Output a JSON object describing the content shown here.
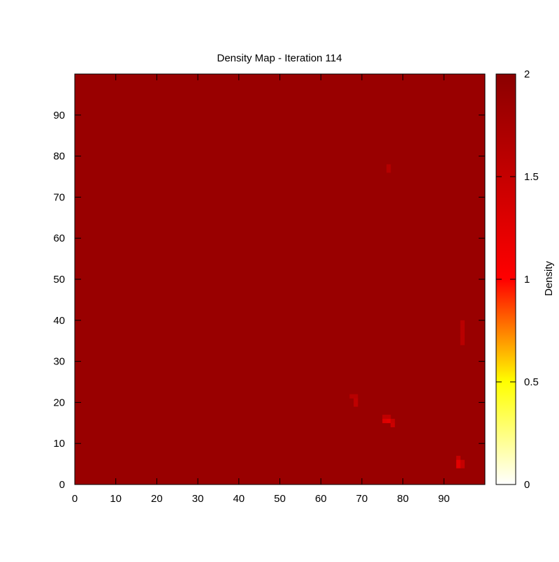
{
  "chart_data": {
    "type": "heatmap",
    "title": "Density Map - Iteration 114",
    "xlabel": "",
    "ylabel": "",
    "xlim": [
      0,
      99
    ],
    "ylim": [
      0,
      99
    ],
    "x_ticks": [
      0,
      10,
      20,
      30,
      40,
      50,
      60,
      70,
      80,
      90
    ],
    "y_ticks": [
      0,
      10,
      20,
      30,
      40,
      50,
      60,
      70,
      80,
      90
    ],
    "grid_size": [
      100,
      100
    ],
    "background_value": 1.88,
    "anomalies": [
      {
        "x": 76,
        "y": 77,
        "value": 1.65
      },
      {
        "x": 76,
        "y": 76,
        "value": 1.65
      },
      {
        "x": 94,
        "y": 39,
        "value": 1.6
      },
      {
        "x": 94,
        "y": 38,
        "value": 1.6
      },
      {
        "x": 94,
        "y": 37,
        "value": 1.6
      },
      {
        "x": 94,
        "y": 36,
        "value": 1.6
      },
      {
        "x": 94,
        "y": 35,
        "value": 1.6
      },
      {
        "x": 94,
        "y": 34,
        "value": 1.6
      },
      {
        "x": 67,
        "y": 21,
        "value": 1.62
      },
      {
        "x": 68,
        "y": 21,
        "value": 1.62
      },
      {
        "x": 68,
        "y": 20,
        "value": 1.55
      },
      {
        "x": 68,
        "y": 19,
        "value": 1.55
      },
      {
        "x": 75,
        "y": 16,
        "value": 1.55
      },
      {
        "x": 76,
        "y": 16,
        "value": 1.55
      },
      {
        "x": 75,
        "y": 15,
        "value": 1.3
      },
      {
        "x": 76,
        "y": 15,
        "value": 1.25
      },
      {
        "x": 77,
        "y": 15,
        "value": 1.5
      },
      {
        "x": 77,
        "y": 14,
        "value": 1.45
      },
      {
        "x": 93,
        "y": 6,
        "value": 1.5
      },
      {
        "x": 93,
        "y": 5,
        "value": 1.25
      },
      {
        "x": 93,
        "y": 4,
        "value": 1.25
      },
      {
        "x": 94,
        "y": 5,
        "value": 1.5
      },
      {
        "x": 94,
        "y": 4,
        "value": 1.5
      }
    ],
    "colorbar": {
      "label": "Density",
      "range": [
        0,
        2
      ],
      "ticks": [
        0,
        0.5,
        1,
        1.5,
        2
      ],
      "tick_labels": [
        "0",
        "0.5",
        "1",
        "1.5",
        "2"
      ],
      "palette_stops": [
        {
          "value": 0,
          "color": "#ffffff"
        },
        {
          "value": 0.5,
          "color": "#ffff00"
        },
        {
          "value": 1,
          "color": "#ff0000"
        },
        {
          "value": 2,
          "color": "#8b0000"
        }
      ]
    }
  }
}
